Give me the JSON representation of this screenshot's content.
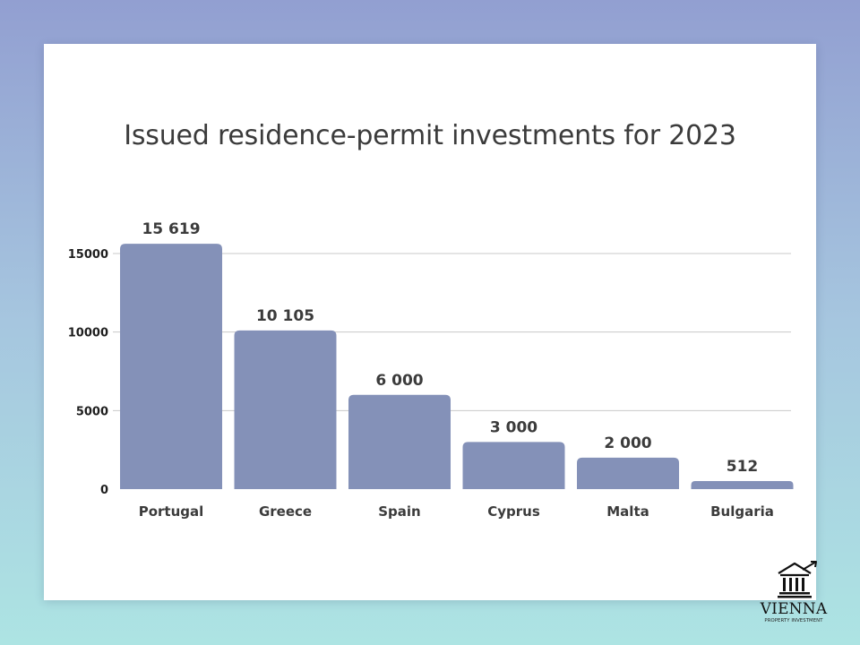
{
  "chart_data": {
    "type": "bar",
    "title": "Issued residence-permit investments for 2023",
    "categories": [
      "Portugal",
      "Greece",
      "Spain",
      "Cyprus",
      "Malta",
      "Bulgaria"
    ],
    "values": [
      15619,
      10105,
      6000,
      3000,
      2000,
      512
    ],
    "data_labels": [
      "15 619",
      "10 105",
      "6 000",
      "3 000",
      "2 000",
      "512"
    ],
    "yticks": [
      0,
      5000,
      10000,
      15000
    ],
    "ytick_labels": [
      "0",
      "5000",
      "10000",
      "15000"
    ],
    "ylim": [
      0,
      15000
    ],
    "xlabel": "",
    "ylabel": "",
    "grid": true,
    "legend": "none"
  },
  "colors": {
    "bar": "#8491b8",
    "grid": "#c8c8c8",
    "text": "#3b3b3b"
  },
  "logo": {
    "name": "VIENNA",
    "tagline": "PROPERTY INVESTMENT",
    "icon": "building-growth-icon"
  }
}
